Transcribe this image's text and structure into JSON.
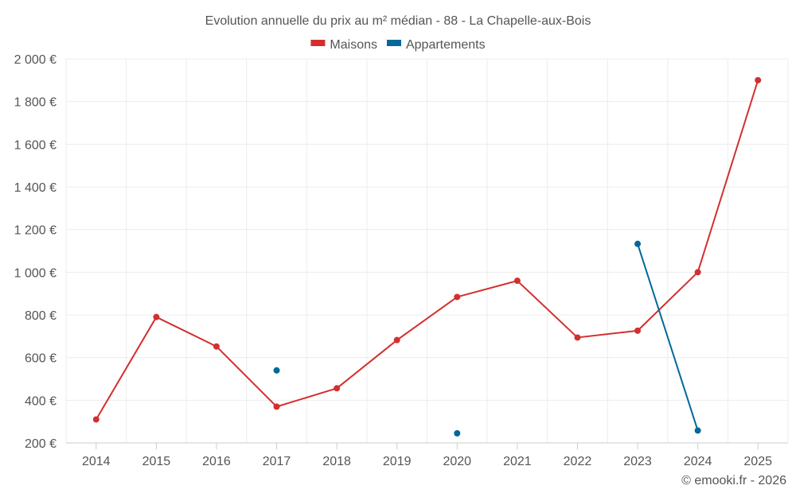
{
  "chart_data": {
    "type": "line",
    "title": "Evolution annuelle du prix au m² médian - 88 - La Chapelle-aux-Bois",
    "categories": [
      "2014",
      "2015",
      "2016",
      "2017",
      "2018",
      "2019",
      "2020",
      "2021",
      "2022",
      "2023",
      "2024",
      "2025"
    ],
    "y_ticks": [
      "200 €",
      "400 €",
      "600 €",
      "800 €",
      "1 000 €",
      "1 200 €",
      "1 400 €",
      "1 600 €",
      "1 800 €",
      "2 000 €"
    ],
    "ylim": [
      200,
      2000
    ],
    "grid": true,
    "legend_position": "top-center",
    "series": [
      {
        "name": "Maisons",
        "color": "#d32f2f",
        "values": [
          310,
          790,
          652,
          370,
          456,
          682,
          884,
          960,
          694,
          726,
          1000,
          1900
        ]
      },
      {
        "name": "Appartements",
        "color": "#01689b",
        "values": [
          null,
          null,
          null,
          540,
          null,
          null,
          245,
          null,
          null,
          1133,
          258,
          null
        ]
      }
    ],
    "credit": "© emooki.fr - 2026"
  }
}
